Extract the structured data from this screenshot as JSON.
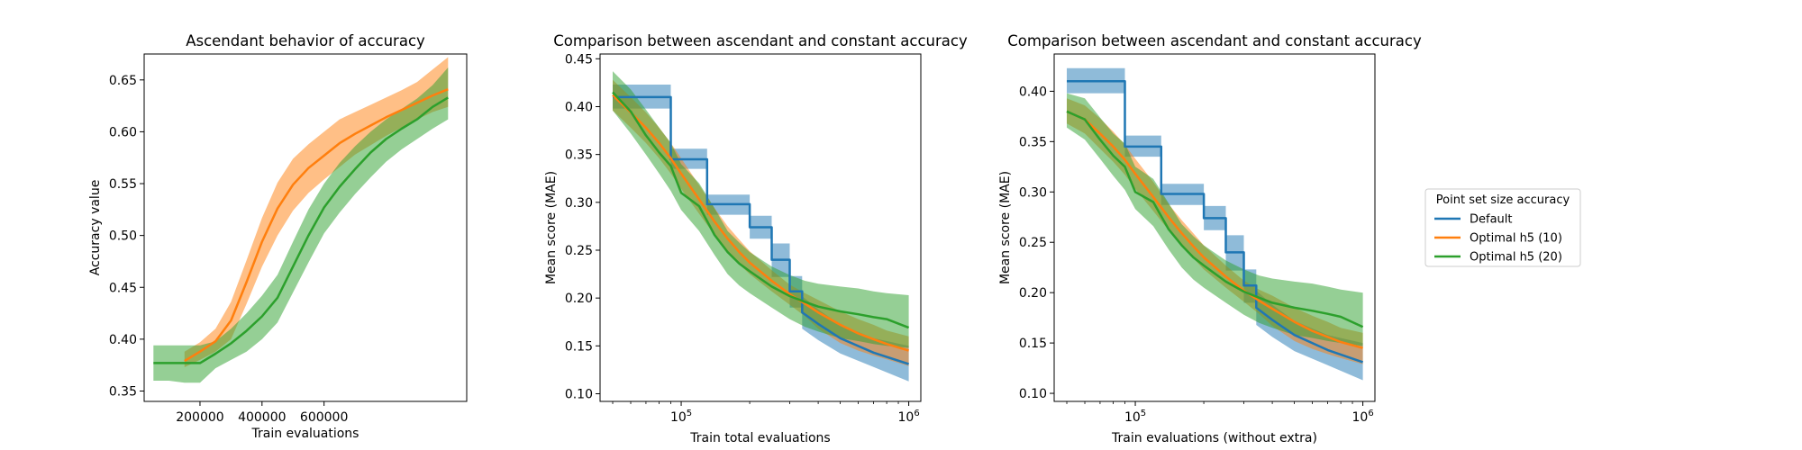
{
  "colors": {
    "default": "#1f77b4",
    "h10": "#ff7f0e",
    "h20": "#2ca02c",
    "band_alpha": 0.5
  },
  "legend": {
    "title": "Point set size accuracy",
    "placement": "right of figure",
    "entries": [
      "Default",
      "Optimal h5 (10)",
      "Optimal h5 (20)"
    ]
  },
  "chart_data": [
    {
      "type": "line",
      "title": "Ascendant behavior of accuracy",
      "xlabel": "Train evaluations",
      "ylabel": "Accuracy value",
      "xscale": "linear",
      "xlim": [
        20000,
        1060000
      ],
      "ylim": [
        0.34,
        0.675
      ],
      "xticks": [
        200000,
        400000,
        600000
      ],
      "xticklabels": [
        "200000",
        "400000",
        "600000"
      ],
      "yticks": [
        0.35,
        0.4,
        0.45,
        0.5,
        0.55,
        0.6,
        0.65
      ],
      "yticklabels": [
        "0.35",
        "0.40",
        "0.45",
        "0.50",
        "0.55",
        "0.60",
        "0.65"
      ],
      "grid": false,
      "series": [
        {
          "key": "h10",
          "x": [
            150000,
            200000,
            250000,
            300000,
            350000,
            400000,
            450000,
            500000,
            550000,
            600000,
            650000,
            700000,
            750000,
            800000,
            850000,
            900000,
            950000,
            1000000
          ],
          "y": [
            0.379,
            0.388,
            0.398,
            0.418,
            0.455,
            0.494,
            0.526,
            0.549,
            0.565,
            0.577,
            0.589,
            0.598,
            0.606,
            0.614,
            0.621,
            0.628,
            0.635,
            0.641
          ],
          "lower": [
            0.373,
            0.38,
            0.388,
            0.4,
            0.434,
            0.47,
            0.5,
            0.524,
            0.541,
            0.554,
            0.566,
            0.578,
            0.587,
            0.596,
            0.604,
            0.612,
            0.619,
            0.624
          ],
          "upper": [
            0.388,
            0.397,
            0.41,
            0.436,
            0.476,
            0.517,
            0.551,
            0.574,
            0.588,
            0.6,
            0.612,
            0.619,
            0.626,
            0.633,
            0.64,
            0.648,
            0.66,
            0.672
          ]
        },
        {
          "key": "h20",
          "x": [
            50000,
            100000,
            150000,
            200000,
            250000,
            300000,
            350000,
            400000,
            450000,
            500000,
            550000,
            600000,
            650000,
            700000,
            750000,
            800000,
            850000,
            900000,
            950000,
            1000000
          ],
          "y": [
            0.377,
            0.377,
            0.377,
            0.377,
            0.386,
            0.396,
            0.408,
            0.422,
            0.44,
            0.47,
            0.5,
            0.527,
            0.547,
            0.564,
            0.58,
            0.593,
            0.603,
            0.612,
            0.624,
            0.633
          ],
          "lower": [
            0.36,
            0.36,
            0.358,
            0.358,
            0.372,
            0.38,
            0.388,
            0.4,
            0.416,
            0.445,
            0.474,
            0.502,
            0.522,
            0.54,
            0.556,
            0.571,
            0.583,
            0.593,
            0.603,
            0.612
          ],
          "upper": [
            0.394,
            0.394,
            0.394,
            0.394,
            0.398,
            0.41,
            0.425,
            0.442,
            0.462,
            0.494,
            0.525,
            0.55,
            0.57,
            0.586,
            0.6,
            0.612,
            0.622,
            0.632,
            0.645,
            0.662
          ]
        }
      ]
    },
    {
      "type": "line",
      "title": "Comparison between ascendant and constant accuracy",
      "xlabel": "Train total evaluations",
      "ylabel": "Mean score (MAE)",
      "xscale": "log",
      "xlim": [
        44000,
        1130000
      ],
      "ylim": [
        0.092,
        0.455
      ],
      "xticks": [
        100000,
        1000000
      ],
      "xticklabels": [
        "10^5",
        "10^6"
      ],
      "yticks": [
        0.1,
        0.15,
        0.2,
        0.25,
        0.3,
        0.35,
        0.4,
        0.45
      ],
      "yticklabels": [
        "0.10",
        "0.15",
        "0.20",
        "0.25",
        "0.30",
        "0.35",
        "0.40",
        "0.45"
      ],
      "grid": false,
      "series": [
        {
          "key": "default",
          "x": [
            50000,
            90000,
            90000,
            130000,
            130000,
            200000,
            200000,
            250000,
            250000,
            300000,
            300000,
            340000,
            340000,
            400000,
            500000,
            700000,
            1000000
          ],
          "y": [
            0.41,
            0.41,
            0.345,
            0.345,
            0.298,
            0.298,
            0.274,
            0.274,
            0.24,
            0.24,
            0.207,
            0.207,
            0.185,
            0.173,
            0.158,
            0.143,
            0.131
          ],
          "lower": [
            0.398,
            0.398,
            0.335,
            0.335,
            0.287,
            0.287,
            0.262,
            0.262,
            0.222,
            0.222,
            0.19,
            0.19,
            0.168,
            0.156,
            0.142,
            0.128,
            0.113
          ],
          "upper": [
            0.423,
            0.423,
            0.356,
            0.356,
            0.308,
            0.308,
            0.286,
            0.286,
            0.257,
            0.257,
            0.223,
            0.223,
            0.202,
            0.188,
            0.172,
            0.158,
            0.15
          ]
        },
        {
          "key": "h10",
          "x": [
            50000,
            60000,
            70000,
            80000,
            90000,
            100000,
            120000,
            140000,
            160000,
            180000,
            200000,
            250000,
            300000,
            350000,
            400000,
            500000,
            600000,
            700000,
            800000,
            1000000
          ],
          "y": [
            0.412,
            0.394,
            0.378,
            0.362,
            0.346,
            0.33,
            0.303,
            0.28,
            0.262,
            0.248,
            0.237,
            0.218,
            0.204,
            0.194,
            0.185,
            0.172,
            0.163,
            0.157,
            0.152,
            0.145
          ],
          "lower": [
            0.396,
            0.378,
            0.362,
            0.346,
            0.33,
            0.314,
            0.288,
            0.266,
            0.249,
            0.235,
            0.225,
            0.207,
            0.193,
            0.181,
            0.168,
            0.153,
            0.145,
            0.14,
            0.136,
            0.129
          ],
          "upper": [
            0.428,
            0.41,
            0.394,
            0.378,
            0.362,
            0.346,
            0.318,
            0.294,
            0.275,
            0.261,
            0.249,
            0.229,
            0.214,
            0.205,
            0.198,
            0.186,
            0.178,
            0.172,
            0.166,
            0.16
          ]
        },
        {
          "key": "h20",
          "x": [
            50000,
            60000,
            70000,
            80000,
            90000,
            100000,
            120000,
            140000,
            160000,
            180000,
            200000,
            250000,
            300000,
            350000,
            400000,
            500000,
            600000,
            700000,
            800000,
            1000000
          ],
          "y": [
            0.415,
            0.395,
            0.37,
            0.352,
            0.338,
            0.31,
            0.296,
            0.266,
            0.248,
            0.236,
            0.228,
            0.212,
            0.202,
            0.196,
            0.191,
            0.186,
            0.183,
            0.18,
            0.178,
            0.169
          ],
          "lower": [
            0.396,
            0.372,
            0.35,
            0.33,
            0.312,
            0.292,
            0.27,
            0.245,
            0.225,
            0.213,
            0.205,
            0.19,
            0.178,
            0.17,
            0.165,
            0.158,
            0.155,
            0.152,
            0.15,
            0.148
          ],
          "upper": [
            0.437,
            0.418,
            0.397,
            0.378,
            0.362,
            0.34,
            0.32,
            0.294,
            0.27,
            0.258,
            0.248,
            0.233,
            0.224,
            0.218,
            0.215,
            0.212,
            0.21,
            0.207,
            0.205,
            0.203
          ]
        }
      ]
    },
    {
      "type": "line",
      "title": "Comparison between ascendant and constant accuracy",
      "xlabel": "Train evaluations (without extra)",
      "ylabel": "Mean score (MAE)",
      "xscale": "log",
      "xlim": [
        44000,
        1130000
      ],
      "ylim": [
        0.092,
        0.437
      ],
      "xticks": [
        100000,
        1000000
      ],
      "xticklabels": [
        "10^5",
        "10^6"
      ],
      "yticks": [
        0.1,
        0.15,
        0.2,
        0.25,
        0.3,
        0.35,
        0.4
      ],
      "yticklabels": [
        "0.10",
        "0.15",
        "0.20",
        "0.25",
        "0.30",
        "0.35",
        "0.40"
      ],
      "grid": false,
      "series": [
        {
          "key": "default",
          "x": [
            50000,
            90000,
            90000,
            130000,
            130000,
            200000,
            200000,
            250000,
            250000,
            300000,
            300000,
            340000,
            340000,
            400000,
            500000,
            700000,
            1000000
          ],
          "y": [
            0.41,
            0.41,
            0.345,
            0.345,
            0.298,
            0.298,
            0.274,
            0.274,
            0.24,
            0.24,
            0.207,
            0.207,
            0.185,
            0.173,
            0.158,
            0.143,
            0.131
          ],
          "lower": [
            0.398,
            0.398,
            0.335,
            0.335,
            0.287,
            0.287,
            0.262,
            0.262,
            0.222,
            0.222,
            0.19,
            0.19,
            0.168,
            0.156,
            0.142,
            0.128,
            0.113
          ],
          "upper": [
            0.423,
            0.423,
            0.356,
            0.356,
            0.308,
            0.308,
            0.286,
            0.286,
            0.257,
            0.257,
            0.223,
            0.223,
            0.202,
            0.188,
            0.172,
            0.158,
            0.15
          ]
        },
        {
          "key": "h10",
          "x": [
            50000,
            60000,
            70000,
            80000,
            90000,
            100000,
            120000,
            140000,
            160000,
            180000,
            200000,
            250000,
            300000,
            350000,
            400000,
            500000,
            600000,
            700000,
            800000,
            1000000
          ],
          "y": [
            0.38,
            0.372,
            0.358,
            0.345,
            0.332,
            0.318,
            0.295,
            0.275,
            0.259,
            0.246,
            0.235,
            0.216,
            0.202,
            0.192,
            0.184,
            0.171,
            0.162,
            0.156,
            0.151,
            0.145
          ],
          "lower": [
            0.368,
            0.358,
            0.343,
            0.33,
            0.317,
            0.303,
            0.281,
            0.262,
            0.246,
            0.234,
            0.223,
            0.205,
            0.191,
            0.179,
            0.167,
            0.152,
            0.144,
            0.139,
            0.135,
            0.129
          ],
          "upper": [
            0.393,
            0.386,
            0.373,
            0.36,
            0.347,
            0.333,
            0.31,
            0.288,
            0.272,
            0.259,
            0.247,
            0.227,
            0.212,
            0.203,
            0.197,
            0.185,
            0.177,
            0.171,
            0.165,
            0.16
          ]
        },
        {
          "key": "h20",
          "x": [
            50000,
            60000,
            70000,
            80000,
            90000,
            100000,
            120000,
            140000,
            160000,
            180000,
            200000,
            250000,
            300000,
            350000,
            400000,
            500000,
            600000,
            700000,
            800000,
            1000000
          ],
          "y": [
            0.38,
            0.372,
            0.352,
            0.336,
            0.325,
            0.3,
            0.29,
            0.263,
            0.247,
            0.235,
            0.227,
            0.211,
            0.201,
            0.195,
            0.19,
            0.185,
            0.182,
            0.179,
            0.176,
            0.166
          ],
          "lower": [
            0.364,
            0.352,
            0.333,
            0.316,
            0.302,
            0.283,
            0.266,
            0.243,
            0.225,
            0.213,
            0.205,
            0.19,
            0.178,
            0.17,
            0.165,
            0.158,
            0.155,
            0.152,
            0.15,
            0.147
          ],
          "upper": [
            0.398,
            0.393,
            0.374,
            0.358,
            0.348,
            0.325,
            0.313,
            0.289,
            0.268,
            0.256,
            0.247,
            0.232,
            0.223,
            0.217,
            0.214,
            0.211,
            0.209,
            0.206,
            0.203,
            0.2
          ]
        }
      ]
    }
  ]
}
